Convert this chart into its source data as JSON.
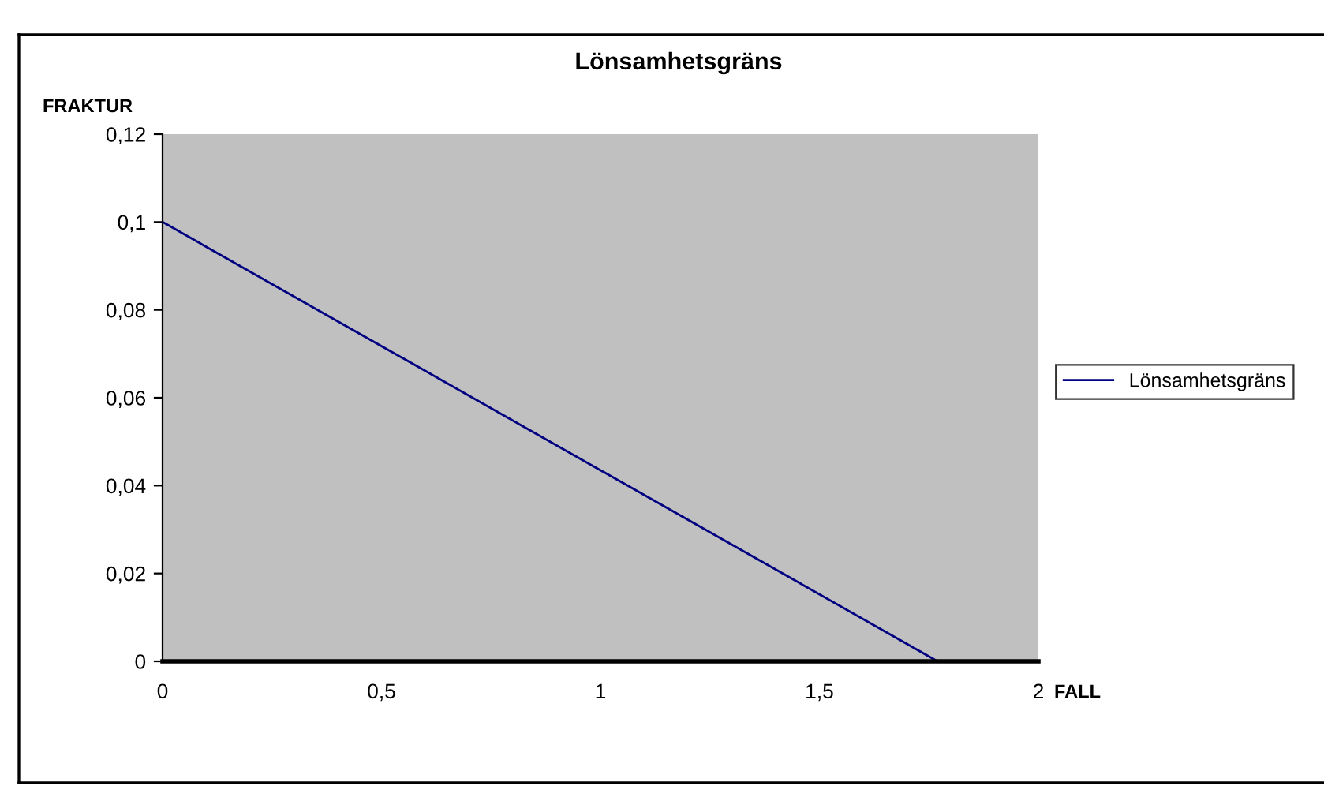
{
  "chart_data": {
    "type": "line",
    "title": "Lönsamhetsgräns",
    "xlabel": "FALL",
    "ylabel": "FRAKTUR",
    "x": [
      0,
      1.77
    ],
    "series": [
      {
        "name": "Lönsamhetsgräns",
        "color": "#000080",
        "values": [
          0.1,
          0
        ]
      }
    ],
    "xlim": [
      0,
      2
    ],
    "xticks": [
      0,
      {
        "value": 0.5,
        "label": "0,5"
      },
      1,
      {
        "value": 1.5,
        "label": "1,5"
      },
      2
    ],
    "ylim": [
      0,
      0.12
    ],
    "yticks": [
      0,
      {
        "value": 0.02,
        "label": "0,02"
      },
      {
        "value": 0.04,
        "label": "0,04"
      },
      {
        "value": 0.06,
        "label": "0,06"
      },
      {
        "value": 0.08,
        "label": "0,08"
      },
      {
        "value": 0.1,
        "label": "0,1"
      },
      {
        "value": 0.12,
        "label": "0,12"
      }
    ],
    "grid": false,
    "legend": "right",
    "marker": "none",
    "line_style": "solid"
  }
}
